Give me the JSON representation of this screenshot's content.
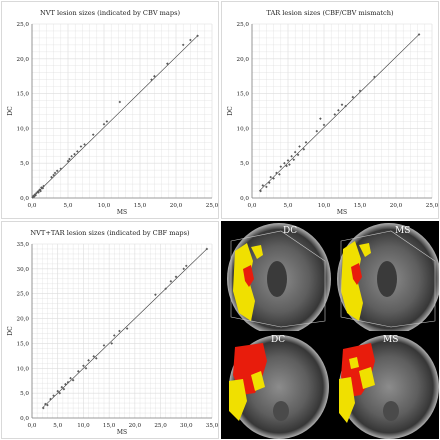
{
  "chart_data": [
    {
      "type": "scatter",
      "title": "NVT lesion sizes (indicated by CBV maps)",
      "xlabel": "MS",
      "ylabel": "DC",
      "xlim": [
        0,
        25
      ],
      "ylim": [
        0,
        25
      ],
      "xticks": [
        "0,0",
        "5,0",
        "10,0",
        "15,0",
        "20,0",
        "25,0"
      ],
      "yticks": [
        "0,0",
        "5,0",
        "10,0",
        "15,0",
        "20,0",
        "25,0"
      ],
      "grid": true,
      "trendline": [
        [
          0,
          0
        ],
        [
          23,
          23.3
        ]
      ],
      "points": [
        [
          0.1,
          0.1
        ],
        [
          0.2,
          0.3
        ],
        [
          0.3,
          0.2
        ],
        [
          0.4,
          0.5
        ],
        [
          0.5,
          0.4
        ],
        [
          0.6,
          0.7
        ],
        [
          0.8,
          0.9
        ],
        [
          0.9,
          0.8
        ],
        [
          1.0,
          1.1
        ],
        [
          1.1,
          1.2
        ],
        [
          1.2,
          1.0
        ],
        [
          1.3,
          1.5
        ],
        [
          1.5,
          1.4
        ],
        [
          1.6,
          1.7
        ],
        [
          2.7,
          3.0
        ],
        [
          3.0,
          3.3
        ],
        [
          3.2,
          3.6
        ],
        [
          3.5,
          3.9
        ],
        [
          4.0,
          4.2
        ],
        [
          5.0,
          5.3
        ],
        [
          5.2,
          5.6
        ],
        [
          5.5,
          6.0
        ],
        [
          5.9,
          6.3
        ],
        [
          6.3,
          6.7
        ],
        [
          6.8,
          7.4
        ],
        [
          7.3,
          7.7
        ],
        [
          8.5,
          9.1
        ],
        [
          10.0,
          10.6
        ],
        [
          10.4,
          11.0
        ],
        [
          12.2,
          13.8
        ],
        [
          16.6,
          17.0
        ],
        [
          17.0,
          17.5
        ],
        [
          18.8,
          19.3
        ],
        [
          21.0,
          22.0
        ],
        [
          22.0,
          22.7
        ],
        [
          23.0,
          23.3
        ]
      ]
    },
    {
      "type": "scatter",
      "title": "TAR lesion sizes (CBF/CBV mismatch)",
      "xlabel": "MS",
      "ylabel": "DC",
      "xlim": [
        0,
        25
      ],
      "ylim": [
        0,
        25
      ],
      "xticks": [
        "0,0",
        "5,0",
        "10,0",
        "15,0",
        "20,0",
        "25,0"
      ],
      "yticks": [
        "0,0",
        "5,0",
        "10,0",
        "15,0",
        "20,0",
        "25,0"
      ],
      "grid": true,
      "trendline": [
        [
          1,
          1
        ],
        [
          23.2,
          23.5
        ]
      ],
      "points": [
        [
          1.2,
          1.0
        ],
        [
          1.5,
          1.8
        ],
        [
          2.0,
          1.6
        ],
        [
          2.4,
          2.2
        ],
        [
          2.6,
          3.0
        ],
        [
          3.0,
          2.8
        ],
        [
          3.4,
          3.6
        ],
        [
          3.8,
          3.4
        ],
        [
          4.0,
          4.5
        ],
        [
          4.5,
          5.0
        ],
        [
          4.8,
          4.6
        ],
        [
          5.0,
          5.4
        ],
        [
          5.2,
          4.8
        ],
        [
          5.5,
          6.0
        ],
        [
          5.8,
          5.5
        ],
        [
          6.0,
          6.6
        ],
        [
          6.4,
          6.2
        ],
        [
          6.6,
          7.4
        ],
        [
          7.2,
          7.0
        ],
        [
          7.5,
          8.0
        ],
        [
          9.0,
          9.6
        ],
        [
          9.5,
          11.4
        ],
        [
          10.0,
          10.5
        ],
        [
          11.5,
          12.0
        ],
        [
          12.0,
          12.6
        ],
        [
          12.5,
          13.4
        ],
        [
          13.0,
          13.2
        ],
        [
          14.0,
          14.5
        ],
        [
          15.0,
          15.4
        ],
        [
          17.0,
          17.4
        ],
        [
          23.2,
          23.5
        ]
      ]
    },
    {
      "type": "scatter",
      "title": "NVT+TAR lesion sizes (indicated by CBF maps)",
      "xlabel": "MS",
      "ylabel": "DC",
      "xlim": [
        0,
        35
      ],
      "ylim": [
        0,
        35
      ],
      "xticks": [
        "0,0",
        "5,0",
        "10,0",
        "15,0",
        "20,0",
        "25,0",
        "30,0",
        "35,0"
      ],
      "yticks": [
        "0,0",
        "5,0",
        "10,0",
        "15,0",
        "20,0",
        "25,0",
        "30,0",
        "35,0"
      ],
      "grid": true,
      "trendline": [
        [
          2,
          2
        ],
        [
          34,
          34
        ]
      ],
      "points": [
        [
          2.2,
          2.0
        ],
        [
          2.6,
          2.8
        ],
        [
          3.0,
          2.6
        ],
        [
          3.6,
          3.8
        ],
        [
          4.2,
          4.5
        ],
        [
          5.0,
          5.4
        ],
        [
          5.4,
          5.0
        ],
        [
          5.8,
          6.2
        ],
        [
          6.2,
          5.8
        ],
        [
          6.5,
          6.8
        ],
        [
          7.0,
          7.2
        ],
        [
          7.5,
          8.0
        ],
        [
          8.0,
          7.6
        ],
        [
          9.0,
          9.4
        ],
        [
          10.0,
          10.5
        ],
        [
          10.5,
          10.0
        ],
        [
          11.0,
          11.6
        ],
        [
          12.0,
          12.4
        ],
        [
          12.5,
          12.0
        ],
        [
          14.0,
          14.6
        ],
        [
          15.5,
          15.0
        ],
        [
          16.0,
          16.6
        ],
        [
          17.0,
          17.5
        ],
        [
          18.5,
          18.0
        ],
        [
          24.0,
          24.8
        ],
        [
          26.0,
          26.0
        ],
        [
          27.0,
          27.5
        ],
        [
          28.0,
          28.4
        ],
        [
          29.5,
          30.0
        ],
        [
          30.0,
          30.6
        ],
        [
          34.0,
          34.0
        ]
      ]
    }
  ],
  "scans": {
    "labels": [
      "DC",
      "MS",
      "DC",
      "MS"
    ]
  },
  "colors": {
    "point": "#5a5a5a",
    "trendline": "#3a3a3a",
    "grid": "#dcdcdc",
    "axis": "#7f7f7f",
    "lesion_yellow": "#f0e000",
    "lesion_red": "#e81c0c",
    "scan_bg": "#000000"
  }
}
